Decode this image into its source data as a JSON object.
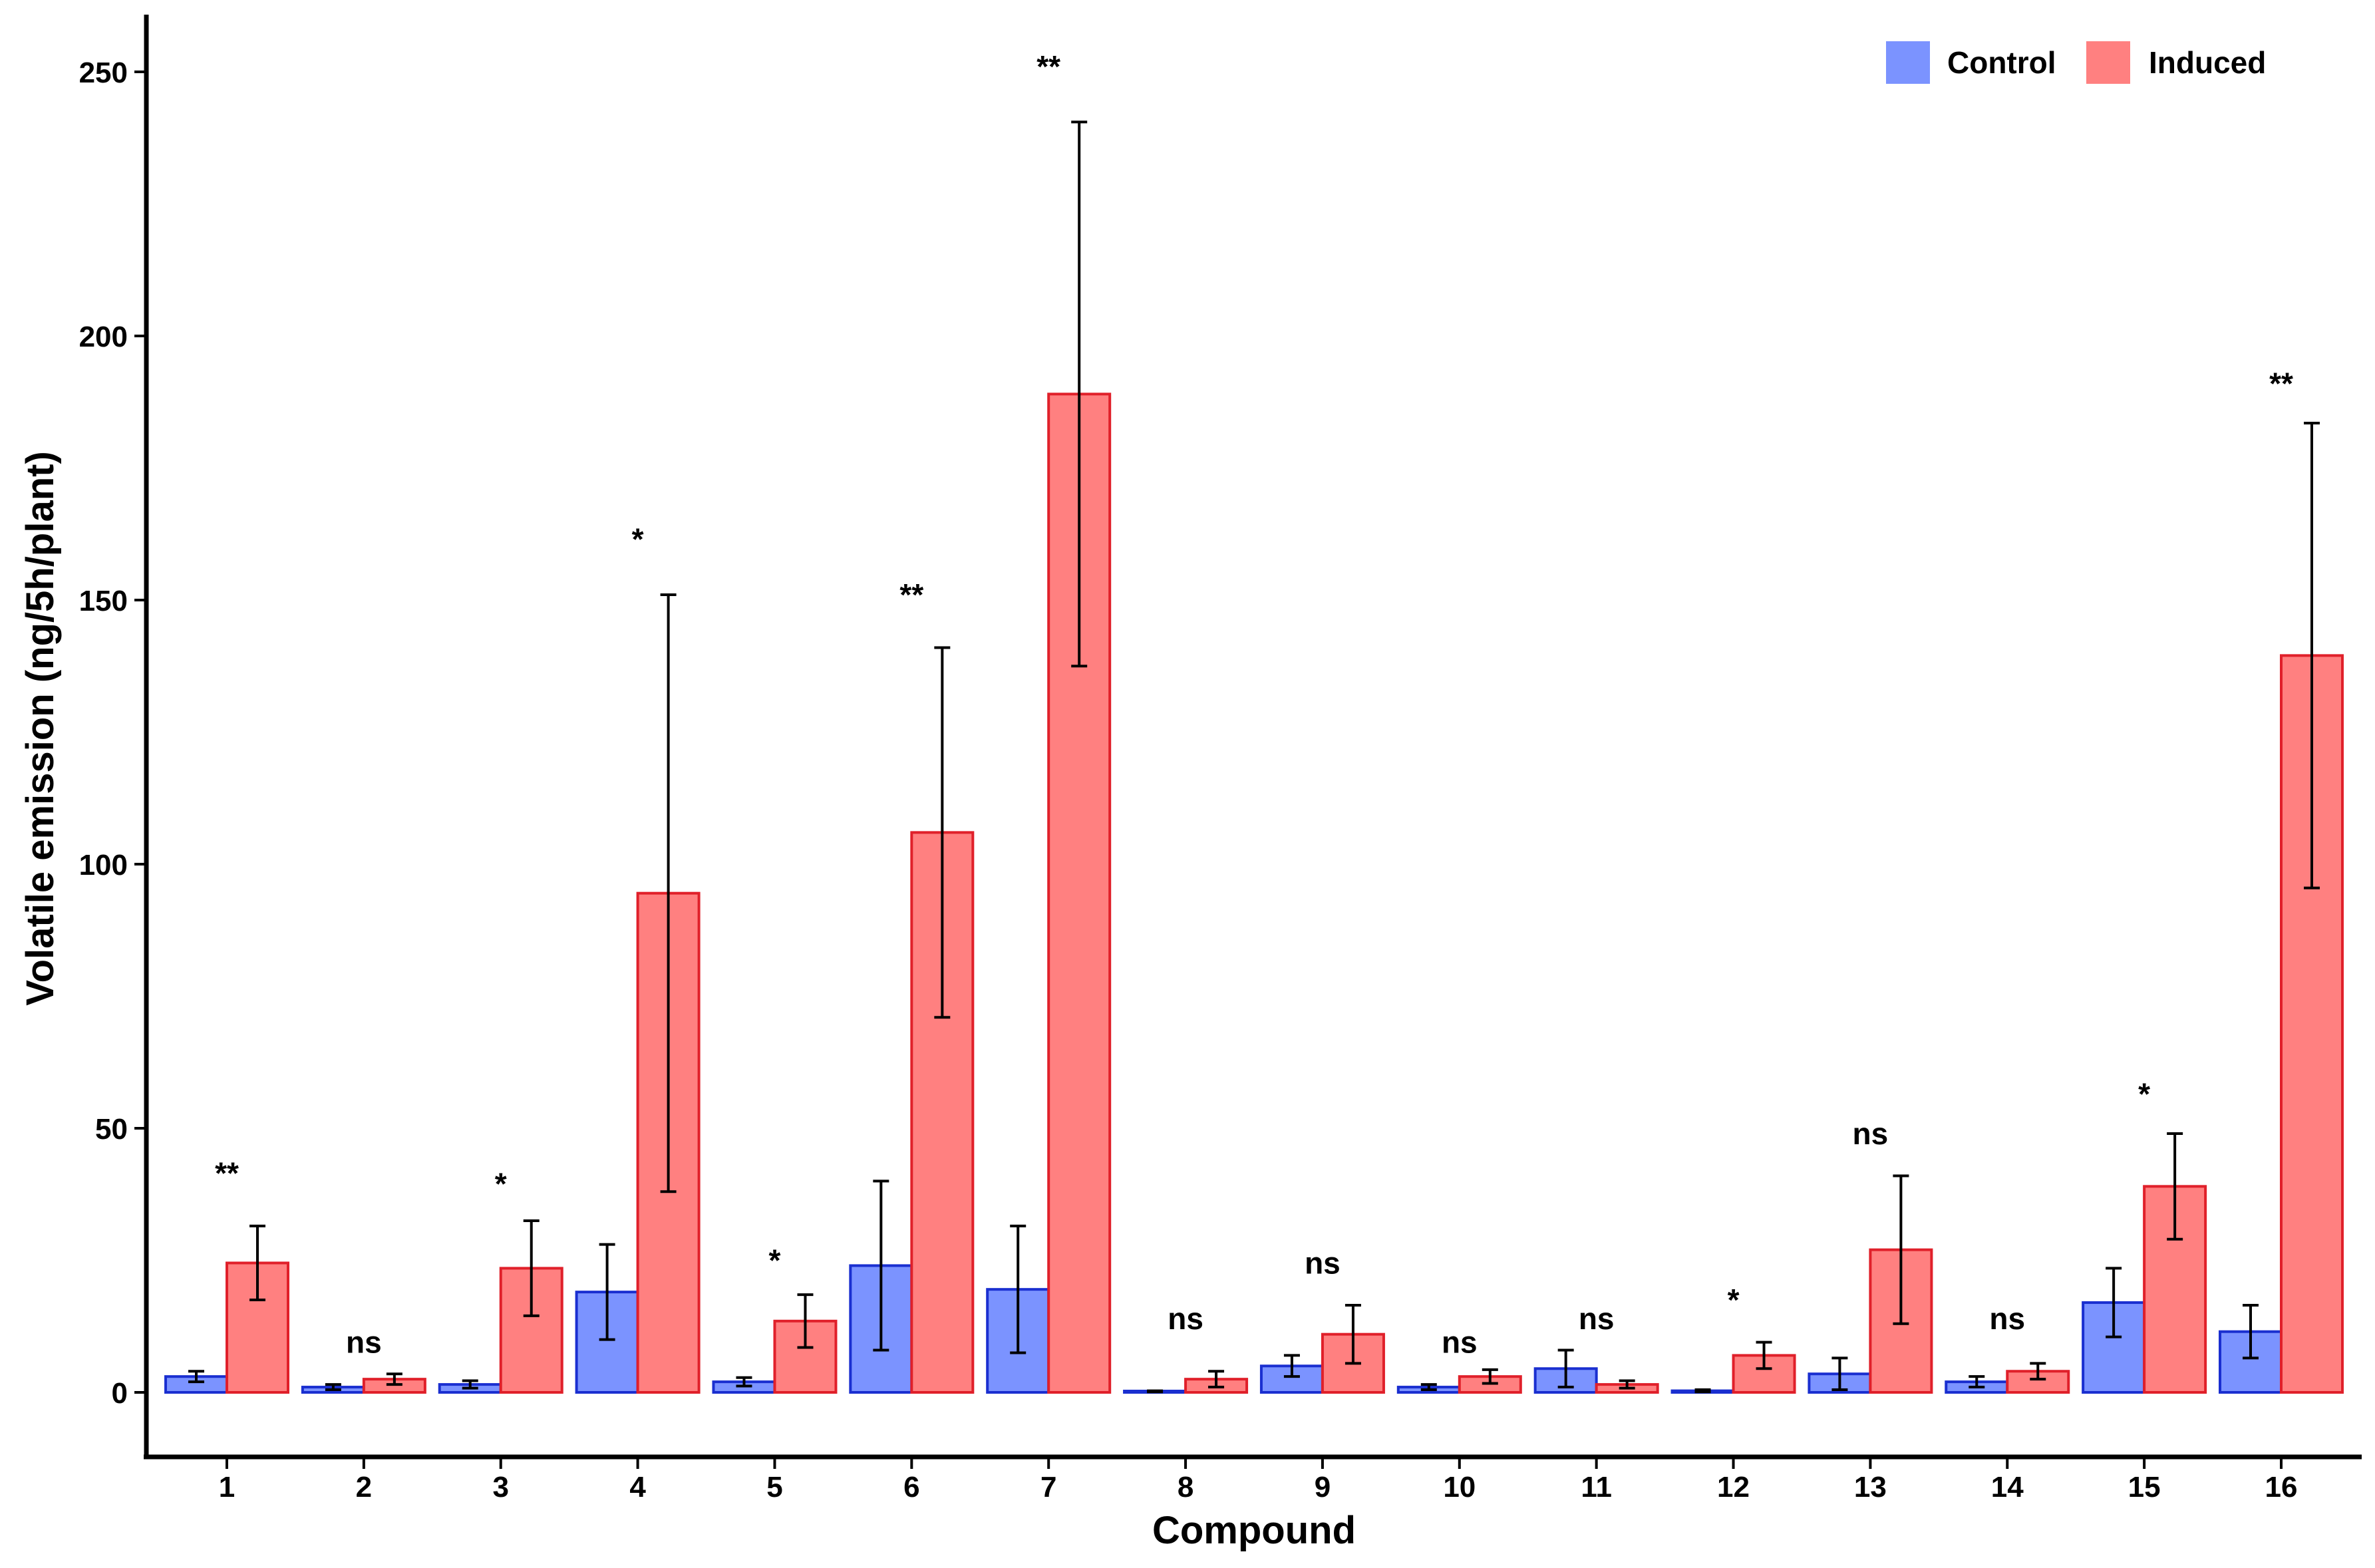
{
  "chart_data": {
    "type": "bar",
    "title": "",
    "xlabel": "Compound",
    "ylabel": "Volatile emission (ng/5h/plant)",
    "ylim": [
      -12,
      262
    ],
    "yticks": [
      0,
      50,
      100,
      150,
      200,
      250
    ],
    "categories": [
      "1",
      "2",
      "3",
      "4",
      "5",
      "6",
      "7",
      "8",
      "9",
      "10",
      "11",
      "12",
      "13",
      "14",
      "15",
      "16"
    ],
    "legend_position": "top-right",
    "series": [
      {
        "name": "Control",
        "fill": "#7b93ff",
        "stroke": "#1a2fd0",
        "values": [
          3,
          1,
          1.5,
          19,
          2,
          24,
          19.5,
          0.2,
          5,
          1,
          4.5,
          0.3,
          3.5,
          2,
          17,
          11.5
        ],
        "errors": [
          1,
          0.5,
          0.7,
          9,
          0.8,
          16,
          12,
          0.1,
          2,
          0.5,
          3.5,
          0.2,
          3,
          1,
          6.5,
          5
        ]
      },
      {
        "name": "Induced",
        "fill": "#ff8080",
        "stroke": "#e0202a",
        "values": [
          24.5,
          2.5,
          23.5,
          94.5,
          13.5,
          106,
          189,
          2.5,
          11,
          3,
          1.5,
          7,
          27,
          4,
          39,
          139.5
        ],
        "errors": [
          7,
          1,
          9,
          56.5,
          5,
          35,
          51.5,
          1.5,
          5.5,
          1.3,
          0.7,
          2.5,
          14,
          1.5,
          10,
          44
        ]
      }
    ],
    "significance": [
      "**",
      "ns",
      "*",
      "*",
      "*",
      "**",
      "**",
      "ns",
      "ns",
      "ns",
      "ns",
      "*",
      "ns",
      "ns",
      "*",
      "**"
    ],
    "significance_y": [
      41.5,
      9.5,
      39.5,
      161.5,
      25,
      151,
      251,
      14,
      24.5,
      9.5,
      14,
      17.5,
      49,
      14,
      56.5,
      191
    ]
  }
}
